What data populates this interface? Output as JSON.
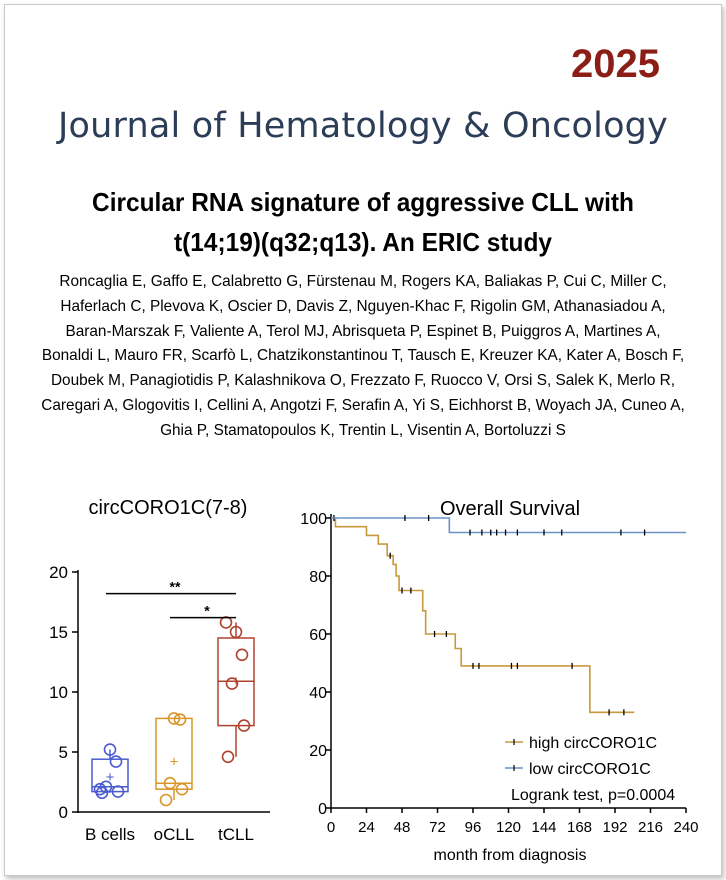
{
  "header": {
    "year": "2025",
    "journal": "Journal of Hematology & Oncology"
  },
  "paper": {
    "title_line1": "Circular RNA signature of aggressive CLL with",
    "title_line2": "t(14;19)(q32;q13). An ERIC study",
    "authors": "Roncaglia E, Gaffo E, Calabretto G, Fürstenau M, Rogers KA, Baliakas P, Cui C, Miller C, Haferlach C, Plevova K, Oscier D, Davis Z, Nguyen-Khac F, Rigolin GM, Athanasiadou A, Baran-Marszak F, Valiente A, Terol MJ, Abrisqueta P, Espinet B, Puiggros A, Martines A, Bonaldi L, Mauro FR, Scarfò L, Chatzikonstantinou T, Tausch E, Kreuzer KA, Kater A, Bosch F, Doubek M, Panagiotidis P, Kalashnikova O, Frezzato F, Ruocco V, Orsi S, Salek K, Merlo R, Caregari A, Glogovitis I, Cellini A, Angotzi F, Serafin A, Yi S, Eichhorst B, Woyach JA, Cuneo A, Ghia P, Stamatopoulos K, Trentin L, Visentin A, Bortoluzzi S"
  },
  "chart_data": [
    {
      "type": "box",
      "title": "circCORO1C(7-8)",
      "xlabel": "",
      "ylabel": "",
      "ylim": [
        0,
        20
      ],
      "yticks": [
        "0",
        "5",
        "10",
        "15",
        "20"
      ],
      "categories": [
        "B cells",
        "oCLL",
        "tCLL"
      ],
      "colors": [
        "#4a5bd0",
        "#d8952a",
        "#b0412e"
      ],
      "boxes": [
        {
          "min": 1.6,
          "q1": 1.7,
          "median": 2.1,
          "q3": 4.4,
          "max": 5.2,
          "mean": 2.9,
          "points": [
            1.6,
            1.7,
            2.1,
            4.2,
            5.2,
            1.9
          ]
        },
        {
          "min": 1.0,
          "q1": 1.9,
          "median": 2.4,
          "q3": 7.8,
          "max": 7.8,
          "mean": 4.2,
          "points": [
            1.0,
            1.9,
            2.4,
            7.7,
            7.8
          ]
        },
        {
          "min": 4.6,
          "q1": 7.2,
          "median": 10.9,
          "q3": 14.5,
          "max": 15.8,
          "mean": 10.9,
          "points": [
            4.6,
            7.2,
            10.7,
            13.1,
            15.0,
            15.8
          ]
        }
      ],
      "significance": [
        {
          "from": "B cells",
          "to": "tCLL",
          "label": "**",
          "y": 18.2
        },
        {
          "from": "oCLL",
          "to": "tCLL",
          "label": "*",
          "y": 16.2
        }
      ]
    },
    {
      "type": "line",
      "title": "Overall Survival",
      "xlabel": "month from diagnosis",
      "ylabel": "",
      "xlim": [
        0,
        240
      ],
      "ylim": [
        0,
        100
      ],
      "xticks": [
        "0",
        "24",
        "48",
        "72",
        "96",
        "120",
        "144",
        "168",
        "192",
        "216",
        "240"
      ],
      "yticks": [
        "0",
        "20",
        "40",
        "60",
        "80",
        "100"
      ],
      "annotation": "Logrank test, p=0.0004",
      "series": [
        {
          "name": "high circCORO1C",
          "color": "#c8993c",
          "steps": [
            [
              0,
              100
            ],
            [
              3,
              97
            ],
            [
              20,
              97
            ],
            [
              24,
              94
            ],
            [
              32,
              91
            ],
            [
              38,
              87
            ],
            [
              42,
              84
            ],
            [
              44,
              80
            ],
            [
              46,
              75
            ],
            [
              60,
              75
            ],
            [
              62,
              68
            ],
            [
              64,
              60
            ],
            [
              82,
              60
            ],
            [
              84,
              55
            ],
            [
              88,
              49
            ],
            [
              172,
              49
            ],
            [
              175,
              33
            ],
            [
              205,
              33
            ]
          ],
          "censored": [
            [
              2,
              100
            ],
            [
              40,
              87
            ],
            [
              48,
              75
            ],
            [
              54,
              75
            ],
            [
              70,
              60
            ],
            [
              78,
              60
            ],
            [
              96,
              49
            ],
            [
              100,
              49
            ],
            [
              122,
              49
            ],
            [
              126,
              49
            ],
            [
              163,
              49
            ],
            [
              188,
              33
            ],
            [
              198,
              33
            ]
          ]
        },
        {
          "name": "low circCORO1C",
          "color": "#6b93c6",
          "steps": [
            [
              0,
              100
            ],
            [
              78,
              100
            ],
            [
              80,
              95
            ],
            [
              240,
              95
            ]
          ],
          "censored": [
            [
              50,
              100
            ],
            [
              66,
              100
            ],
            [
              94,
              95
            ],
            [
              102,
              95
            ],
            [
              108,
              95
            ],
            [
              112,
              95
            ],
            [
              118,
              95
            ],
            [
              126,
              95
            ],
            [
              144,
              95
            ],
            [
              156,
              95
            ],
            [
              196,
              95
            ],
            [
              212,
              95
            ]
          ]
        }
      ]
    }
  ]
}
